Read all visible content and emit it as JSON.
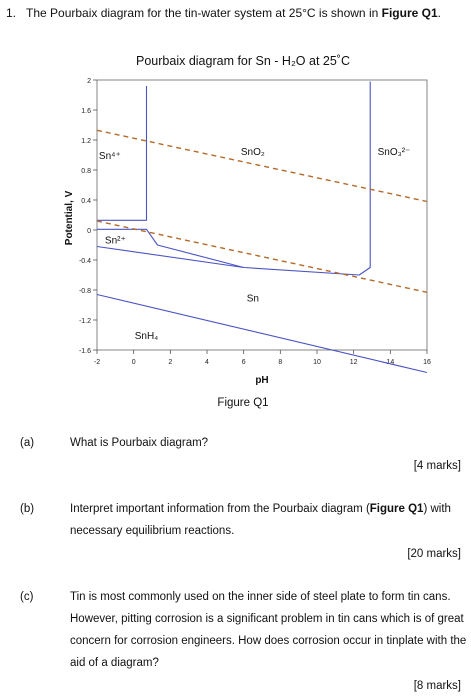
{
  "question": {
    "number": "1.",
    "text_before": "The Pourbaix diagram for the tin-water system at 25°C is shown in ",
    "figure_ref": "Figure Q1",
    "text_after": "."
  },
  "figure": {
    "caption": "Figure Q1",
    "chart_data": {
      "type": "line",
      "title": "Pourbaix diagram for Sn - H₂O at 25˚C",
      "xlabel": "pH",
      "ylabel": "Potential, V",
      "xlim": [
        -2,
        16
      ],
      "ylim": [
        -1.6,
        2
      ],
      "x_ticks": [
        "-2",
        "0",
        "2",
        "4",
        "6",
        "8",
        "10",
        "12",
        "14",
        "16"
      ],
      "y_ticks": [
        "2",
        "1.6",
        "1.2",
        "0.8",
        "0.4",
        "0",
        "-0.4",
        "-0.8",
        "-1.2",
        "-1.6"
      ],
      "grid": false,
      "series": [
        {
          "style": "solid",
          "color": "#4a53c4",
          "points": [
            [
              -2,
              0.13
            ],
            [
              0.7,
              0.13
            ],
            [
              0.7,
              1.92
            ]
          ]
        },
        {
          "style": "solid",
          "color": "#4a53c4",
          "points": [
            [
              -2,
              0.01
            ],
            [
              0.7,
              0.01
            ],
            [
              1.3,
              -0.2
            ],
            [
              6.0,
              -0.5
            ],
            [
              12.3,
              -0.6
            ],
            [
              12.9,
              -0.5
            ],
            [
              12.9,
              1.98
            ]
          ]
        },
        {
          "style": "solid",
          "color": "#4a53c4",
          "points": [
            [
              -2,
              -0.22
            ],
            [
              6.0,
              -0.5
            ]
          ]
        },
        {
          "style": "solid",
          "color": "#4a53c4",
          "points": [
            [
              -2,
              -0.86
            ],
            [
              16,
              -1.9
            ]
          ]
        },
        {
          "style": "dashed",
          "color": "#b56a2a",
          "points": [
            [
              -2,
              1.33
            ],
            [
              16,
              0.38
            ]
          ]
        },
        {
          "style": "dashed",
          "color": "#b56a2a",
          "points": [
            [
              -2,
              0.12
            ],
            [
              16,
              -0.83
            ]
          ]
        }
      ],
      "region_labels": [
        {
          "text": "Sn⁴⁺",
          "x": -1.3,
          "y": 0.95
        },
        {
          "text": "SnO₂",
          "x": 6.5,
          "y": 1.0
        },
        {
          "text": "SnO₃²⁻",
          "x": 14.2,
          "y": 1.0
        },
        {
          "text": "Sn²⁺",
          "x": -1.0,
          "y": -0.18
        },
        {
          "text": "Sn",
          "x": 6.5,
          "y": -0.95
        },
        {
          "text": "SnH₄",
          "x": 0.7,
          "y": -1.45
        }
      ]
    }
  },
  "parts": [
    {
      "label": "(a)",
      "text": "What is Pourbaix diagram?",
      "marks": "[4 marks]"
    },
    {
      "label": "(b)",
      "text_before": "Interpret important information from the Pourbaix diagram (",
      "figure_ref": "Figure Q1",
      "text_after": ") with necessary equilibrium reactions.",
      "marks": "[20 marks]"
    },
    {
      "label": "(c)",
      "text": "Tin is most commonly used on the inner side of steel plate to form tin cans. However, pitting corrosion is a significant problem in tin cans which is of great concern for corrosion engineers. How does corrosion occur in tinplate with the aid of a diagram?",
      "marks": "[8 marks]"
    }
  ]
}
